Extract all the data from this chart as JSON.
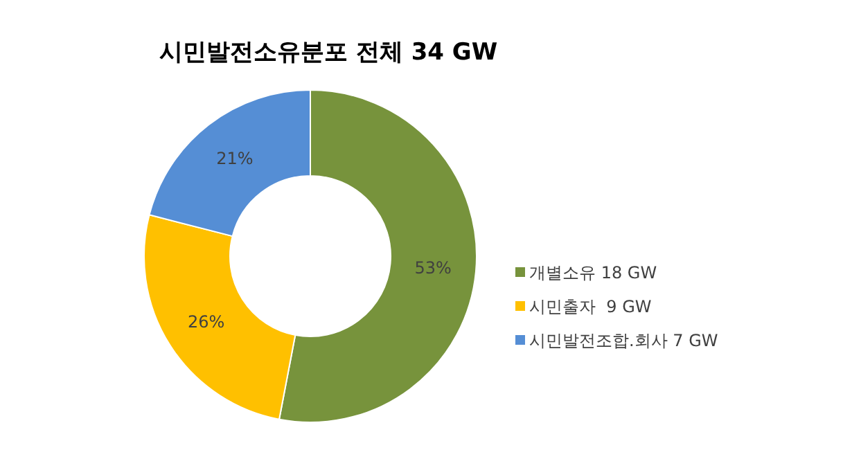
{
  "chart_data": {
    "type": "donut",
    "title": "시민발전소유분포 전체 34 GW",
    "categories": [
      "개별소유 18 GW",
      "시민출자  9 GW",
      "시민발전조합.회사 7 GW"
    ],
    "values": [
      53,
      26,
      21
    ],
    "colors": [
      "#77933c",
      "#ffc000",
      "#558ed5"
    ],
    "value_labels": [
      "53%",
      "26%",
      "21%"
    ],
    "legend": "right"
  }
}
